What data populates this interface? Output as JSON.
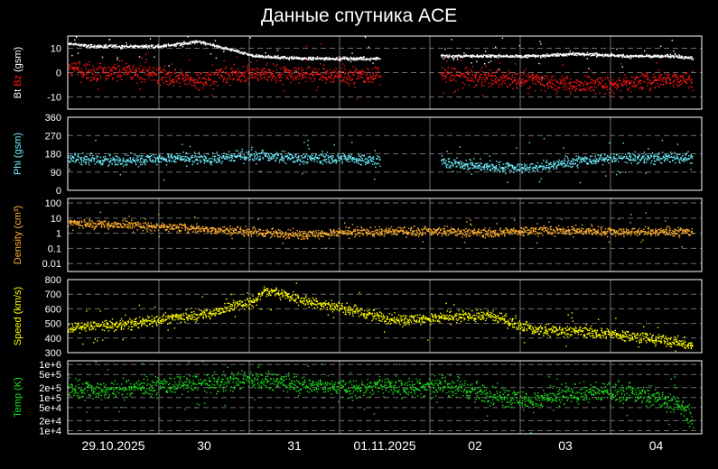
{
  "page": {
    "title": "Данные спутника ACE"
  },
  "colors": {
    "background": "#000000",
    "frame": "#ffffff",
    "grid": "#6e6e6e",
    "bt": "#ffffff",
    "bz": "#ff1414",
    "phi": "#6ff0ff",
    "density": "#ffb030",
    "speed": "#ffff00",
    "temp": "#18e018"
  },
  "chart_data": {
    "type": "scatter",
    "title": "Данные спутника ACE",
    "x_ticks": [
      "29.10.2025",
      "30",
      "31",
      "01.11.2025",
      "02",
      "03",
      "04"
    ],
    "x_range_days": [
      0,
      6.8
    ],
    "grid": true,
    "panels": [
      {
        "key": "bz",
        "ylabel_parts": [
          {
            "text": "Bt",
            "color": "#ffffff"
          },
          {
            "text": " Bz",
            "color": "#ff1414"
          },
          {
            "text": " (gsm)",
            "color": "#ffffff"
          }
        ],
        "yticks": [
          "10",
          "0",
          "-10"
        ],
        "ytick_values": [
          10,
          0,
          -10
        ],
        "ylim": [
          -15,
          15
        ],
        "log": false,
        "series": [
          {
            "name": "Bt",
            "color": "#ffffff",
            "x": [
              0,
              0.3,
              0.6,
              1.0,
              1.4,
              1.6,
              2.0,
              2.5,
              3.0,
              3.35,
              3.45,
              4.0,
              4.5,
              5.0,
              5.5,
              6.0,
              6.5,
              6.7
            ],
            "y": [
              12,
              11,
              11,
              11,
              13,
              11,
              7,
              6,
              6,
              6,
              null,
              7,
              7,
              7,
              8,
              7,
              7,
              6
            ]
          },
          {
            "name": "Bz",
            "color": "#ff1414",
            "x": [
              0,
              0.3,
              0.6,
              1.0,
              1.4,
              1.6,
              2.0,
              2.5,
              3.0,
              3.35,
              3.45,
              4.0,
              4.5,
              5.0,
              5.5,
              6.0,
              6.5,
              6.7
            ],
            "y": [
              2,
              0,
              1,
              -1,
              -3,
              -1,
              0,
              0,
              -1,
              -1,
              null,
              -1,
              -2,
              -3,
              -5,
              -4,
              -2,
              -3
            ]
          }
        ]
      },
      {
        "key": "phi",
        "ylabel_parts": [
          {
            "text": "Phi (gsm)",
            "color": "#6ff0ff"
          }
        ],
        "yticks": [
          "360",
          "270",
          "180",
          "90",
          "0"
        ],
        "ytick_values": [
          360,
          270,
          180,
          90,
          0
        ],
        "ylim": [
          0,
          360
        ],
        "log": false,
        "series": [
          {
            "name": "Phi",
            "color": "#6ff0ff",
            "x": [
              0,
              0.5,
              1.0,
              1.5,
              2.0,
              2.5,
              3.0,
              3.35,
              3.45,
              4.0,
              4.5,
              5.0,
              5.5,
              6.0,
              6.5,
              6.7
            ],
            "y": [
              160,
              150,
              160,
              155,
              175,
              160,
              160,
              150,
              null,
              140,
              120,
              115,
              150,
              160,
              165,
              160
            ]
          }
        ]
      },
      {
        "key": "density",
        "ylabel_parts": [
          {
            "text": "Density (cm³)",
            "color": "#ffb030"
          }
        ],
        "yticks": [
          "100",
          "10",
          "1",
          "0.1",
          "0.01"
        ],
        "ytick_values": [
          100,
          10,
          1,
          0.1,
          0.01
        ],
        "ylim": [
          0.003,
          200
        ],
        "log": true,
        "series": [
          {
            "name": "Density",
            "color": "#ffb030",
            "x": [
              0,
              0.5,
              1.0,
              1.5,
              2.0,
              2.5,
              3.0,
              3.5,
              4.0,
              4.5,
              5.0,
              5.5,
              6.0,
              6.5,
              6.7
            ],
            "y": [
              5,
              4,
              3,
              2,
              1.3,
              0.9,
              1.2,
              1.4,
              1.5,
              1.1,
              1.7,
              1.6,
              1.4,
              1.4,
              1.3
            ]
          }
        ]
      },
      {
        "key": "speed",
        "ylabel_parts": [
          {
            "text": "Speed (km/s)",
            "color": "#ffff00"
          }
        ],
        "yticks": [
          "800",
          "700",
          "600",
          "500",
          "400",
          "300"
        ],
        "ytick_values": [
          800,
          700,
          600,
          500,
          400,
          300
        ],
        "ylim": [
          300,
          800
        ],
        "log": false,
        "series": [
          {
            "name": "Speed",
            "color": "#ffff00",
            "x": [
              0,
              0.5,
              1.0,
              1.5,
              2.0,
              2.1,
              2.5,
              3.0,
              3.5,
              4.0,
              4.5,
              5.0,
              5.5,
              6.0,
              6.5,
              6.7
            ],
            "y": [
              470,
              490,
              530,
              570,
              660,
              730,
              670,
              600,
              530,
              540,
              560,
              460,
              450,
              420,
              380,
              350
            ]
          }
        ]
      },
      {
        "key": "temp",
        "ylabel_parts": [
          {
            "text": "Temp (K)",
            "color": "#18e018"
          }
        ],
        "yticks": [
          "1e+6",
          "5e+5",
          "2e+5",
          "1e+5",
          "5e+4",
          "2e+4",
          "1e+4"
        ],
        "ytick_values": [
          1000000,
          500000,
          200000,
          100000,
          50000,
          20000,
          10000
        ],
        "ylim": [
          8000,
          1300000
        ],
        "log": true,
        "series": [
          {
            "name": "Temp",
            "color": "#18e018",
            "x": [
              0,
              0.5,
              1.0,
              1.5,
              2.0,
              2.3,
              2.5,
              3.0,
              3.5,
              4.0,
              4.5,
              5.0,
              5.5,
              6.0,
              6.5,
              6.7
            ],
            "y": [
              200000,
              180000,
              240000,
              260000,
              380000,
              320000,
              260000,
              200000,
              230000,
              250000,
              130000,
              80000,
              140000,
              150000,
              70000,
              20000
            ]
          }
        ]
      }
    ]
  }
}
